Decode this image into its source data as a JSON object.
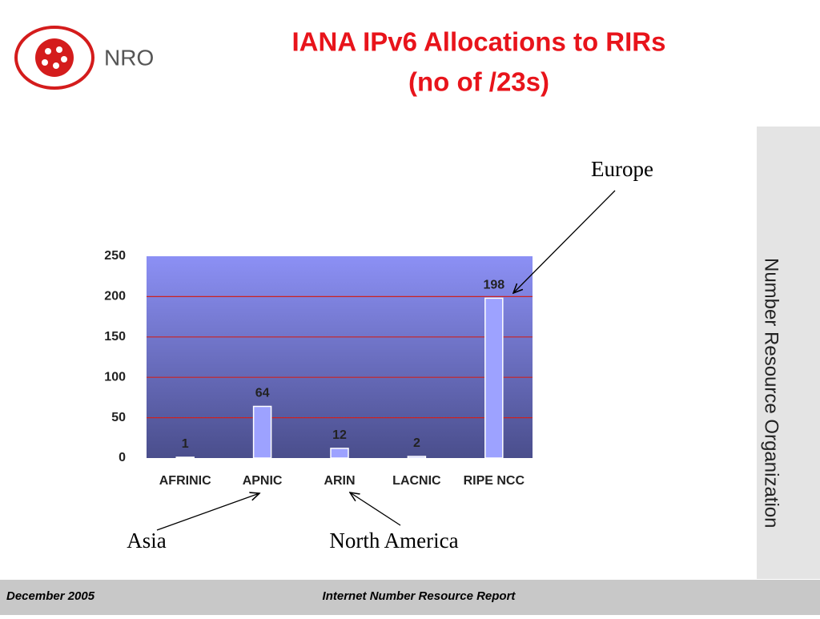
{
  "logo": "NRO",
  "side_text": "Number Resource Organization",
  "footer": {
    "date": "December 2005",
    "report": "Internet Number Resource Report"
  },
  "chart_data": {
    "type": "bar",
    "title": "IANA IPv6 Allocations to RIRs",
    "subtitle": "(no of /23s)",
    "categories": [
      "AFRINIC",
      "APNIC",
      "ARIN",
      "LACNIC",
      "RIPE NCC"
    ],
    "values": [
      1,
      64,
      12,
      2,
      198
    ],
    "color": "#9da2ff",
    "ylim": [
      0,
      250
    ],
    "yticks": [
      0,
      50,
      100,
      150,
      200,
      250
    ],
    "grid": true,
    "grid_color": "#cc2222",
    "annotations": [
      {
        "text": "Europe"
      },
      {
        "text": "Asia"
      },
      {
        "text": "North America"
      }
    ]
  }
}
